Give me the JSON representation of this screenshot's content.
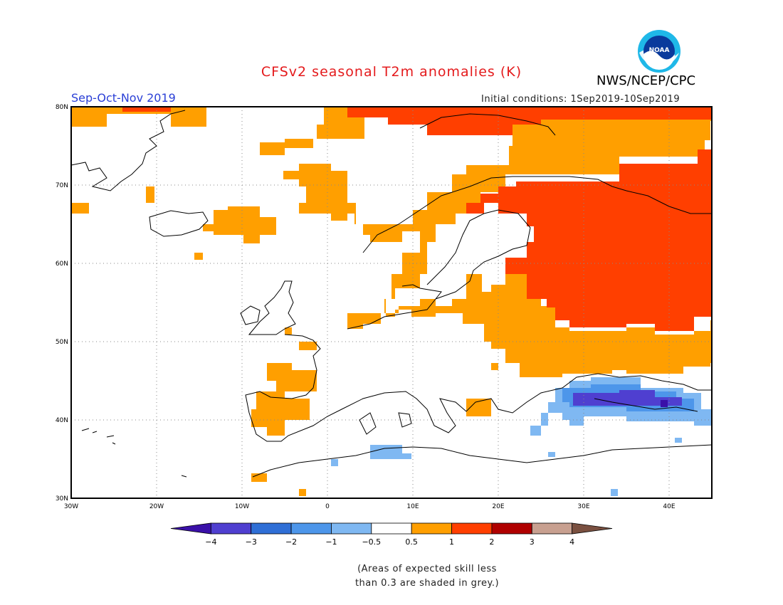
{
  "header": {
    "title": "CFSv2 seasonal T2m anomalies (K)",
    "agency": "NWS/NCEP/CPC",
    "logo_text": "NOAA",
    "season": "Sep-Oct-Nov 2019",
    "initial_conditions": "Initial conditions: 1Sep2019-10Sep2019"
  },
  "map": {
    "lat_labels": [
      "80N",
      "70N",
      "60N",
      "50N",
      "40N",
      "30N"
    ],
    "lon_labels": [
      "30W",
      "20W",
      "10W",
      "0",
      "10E",
      "20E",
      "30E",
      "40E"
    ],
    "lat_values": [
      80,
      70,
      60,
      50,
      40,
      30
    ],
    "lon_values": [
      -30,
      -20,
      -10,
      0,
      10,
      20,
      30,
      40
    ],
    "extent": {
      "lon_min": -30,
      "lon_max": 45,
      "lat_min": 30,
      "lat_max": 80
    },
    "grid": true
  },
  "colorbar": {
    "ticks": [
      "-4",
      "-3",
      "-2",
      "-1",
      "-0.5",
      "0.5",
      "1",
      "2",
      "3",
      "4"
    ],
    "colors": [
      "#3a10a8",
      "#4f3fd0",
      "#2f6fd6",
      "#4d96ea",
      "#7fb8f2",
      "#ffffff",
      "#ff9f00",
      "#ff3f00",
      "#b00000",
      "#c8a090",
      "#7a5040"
    ]
  },
  "note": {
    "line1": "(Areas of expected skill less",
    "line2": "than 0.3 are shaded in grey.)"
  }
}
